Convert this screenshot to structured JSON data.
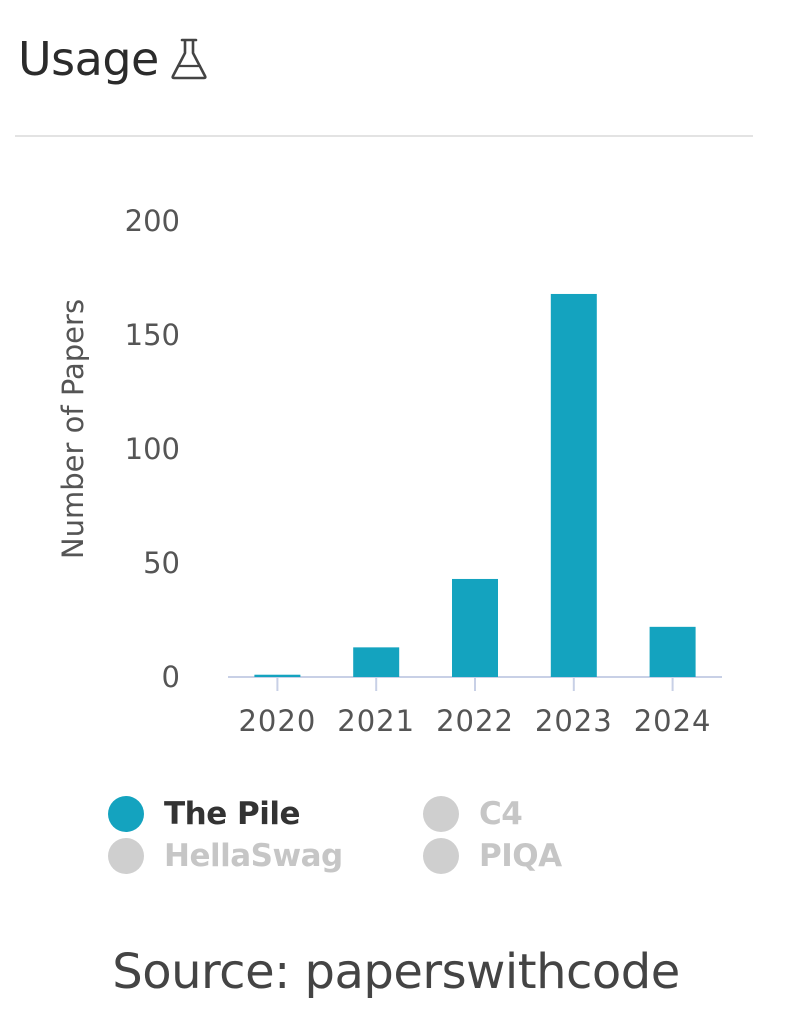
{
  "header": {
    "title": "Usage",
    "icon": "flask-icon"
  },
  "chart_data": {
    "type": "bar",
    "categories": [
      "2020",
      "2021",
      "2022",
      "2023",
      "2024"
    ],
    "series": [
      {
        "name": "The Pile",
        "values": [
          1,
          13,
          43,
          168,
          22
        ],
        "color": "#14a3bf",
        "active": true
      }
    ],
    "ylabel": "Number of Papers",
    "xlabel": "",
    "ylim": [
      0,
      200
    ],
    "yticks": [
      0,
      50,
      100,
      150,
      200
    ],
    "grid": false,
    "legend_position": "bottom"
  },
  "legend": [
    {
      "label": "The Pile",
      "color": "#14a3bf",
      "active": true
    },
    {
      "label": "C4",
      "color": "#cfcfcf",
      "active": false
    },
    {
      "label": "HellaSwag",
      "color": "#cfcfcf",
      "active": false
    },
    {
      "label": "PIQA",
      "color": "#cfcfcf",
      "active": false
    }
  ],
  "footer": {
    "source": "Source: paperswithcode"
  }
}
